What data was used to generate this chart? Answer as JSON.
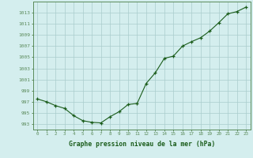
{
  "x": [
    0,
    1,
    2,
    3,
    4,
    5,
    6,
    7,
    8,
    9,
    10,
    11,
    12,
    13,
    14,
    15,
    16,
    17,
    18,
    19,
    20,
    21,
    22,
    23
  ],
  "y": [
    997.5,
    997.0,
    996.3,
    995.8,
    994.5,
    993.6,
    993.3,
    993.2,
    994.3,
    995.2,
    996.5,
    996.7,
    1000.3,
    1002.2,
    1004.8,
    1005.2,
    1007.0,
    1007.8,
    1008.5,
    1009.7,
    1011.2,
    1012.8,
    1013.2,
    1014.0
  ],
  "ylim": [
    992,
    1015
  ],
  "yticks": [
    993,
    995,
    997,
    999,
    1001,
    1003,
    1005,
    1007,
    1009,
    1011,
    1013
  ],
  "xticks": [
    0,
    1,
    2,
    3,
    4,
    5,
    6,
    7,
    8,
    9,
    10,
    11,
    12,
    13,
    14,
    15,
    16,
    17,
    18,
    19,
    20,
    21,
    22,
    23
  ],
  "xlabel": "Graphe pression niveau de la mer (hPa)",
  "line_color": "#1a5c1a",
  "marker_color": "#1a5c1a",
  "bg_color": "#d4eeee",
  "grid_color": "#aacccc",
  "text_color": "#1a5c1a",
  "axis_color": "#5a8a5a"
}
